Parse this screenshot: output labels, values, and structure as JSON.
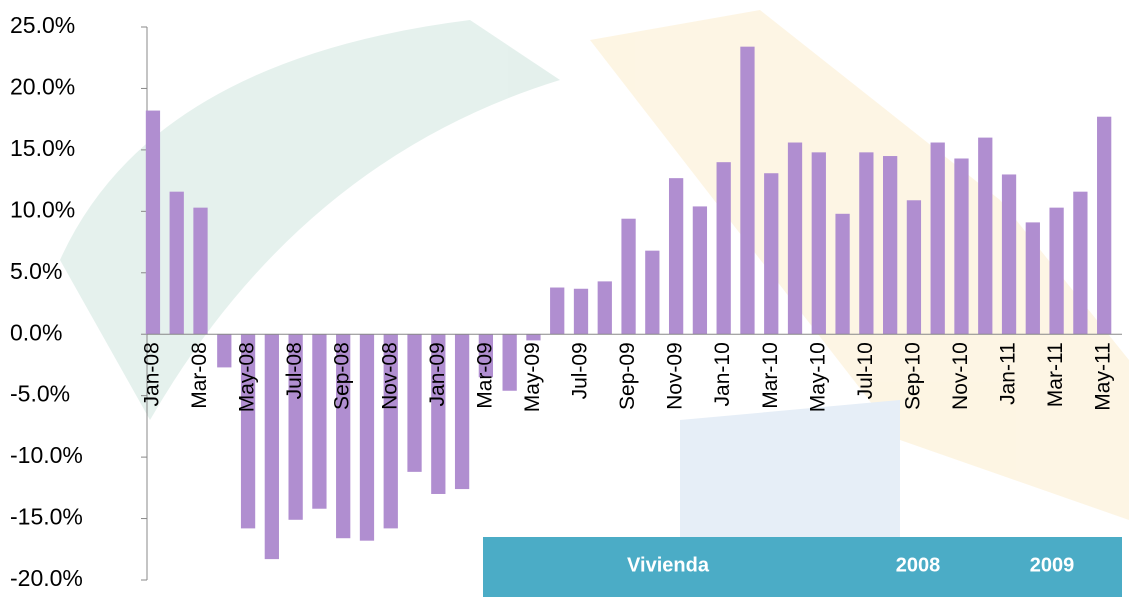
{
  "chart_data": {
    "type": "bar",
    "categories": [
      "Jan-08",
      null,
      "Mar-08",
      null,
      "May-08",
      null,
      "Jul-08",
      null,
      "Sep-08",
      null,
      "Nov-08",
      null,
      "Jan-09",
      null,
      "Mar-09",
      null,
      "May-09",
      null,
      "Jul-09",
      null,
      "Sep-09",
      null,
      "Nov-09",
      null,
      "Jan-10",
      null,
      "Mar-10",
      null,
      "May-10",
      null,
      "Jul-10",
      null,
      "Sep-10",
      null,
      "Nov-10",
      null,
      "Jan-11",
      null,
      "Mar-11",
      null,
      "May-11"
    ],
    "values": [
      18.2,
      11.6,
      10.3,
      -2.7,
      -15.8,
      -18.3,
      -15.1,
      -14.2,
      -16.6,
      -16.8,
      -15.8,
      -11.2,
      -13.0,
      -12.6,
      -3.5,
      -4.6,
      -0.5,
      3.8,
      3.7,
      4.3,
      9.4,
      6.8,
      12.7,
      10.4,
      14.0,
      23.4,
      13.1,
      15.6,
      14.8,
      9.8,
      14.8,
      14.5,
      10.9,
      15.6,
      14.3,
      16.0,
      13.0,
      9.1,
      10.3,
      11.6,
      17.7
    ],
    "color": "#b08ed0",
    "ylim": [
      -20,
      25
    ],
    "yticks": [
      {
        "value": -20,
        "label": "-20.0%"
      },
      {
        "value": -15,
        "label": "-15.0%"
      },
      {
        "value": -10,
        "label": "-10.0%"
      },
      {
        "value": -5,
        "label": "-5.0%"
      },
      {
        "value": 0,
        "label": "0.0%"
      },
      {
        "value": 5,
        "label": "5.0%"
      },
      {
        "value": 10,
        "label": "10.0%"
      },
      {
        "value": 15,
        "label": "15.0%"
      },
      {
        "value": 20,
        "label": "20.0%"
      },
      {
        "value": 25,
        "label": "25.0%"
      }
    ],
    "grid": false
  },
  "table": {
    "header": [
      "Vivienda",
      "2008",
      "2009"
    ]
  }
}
